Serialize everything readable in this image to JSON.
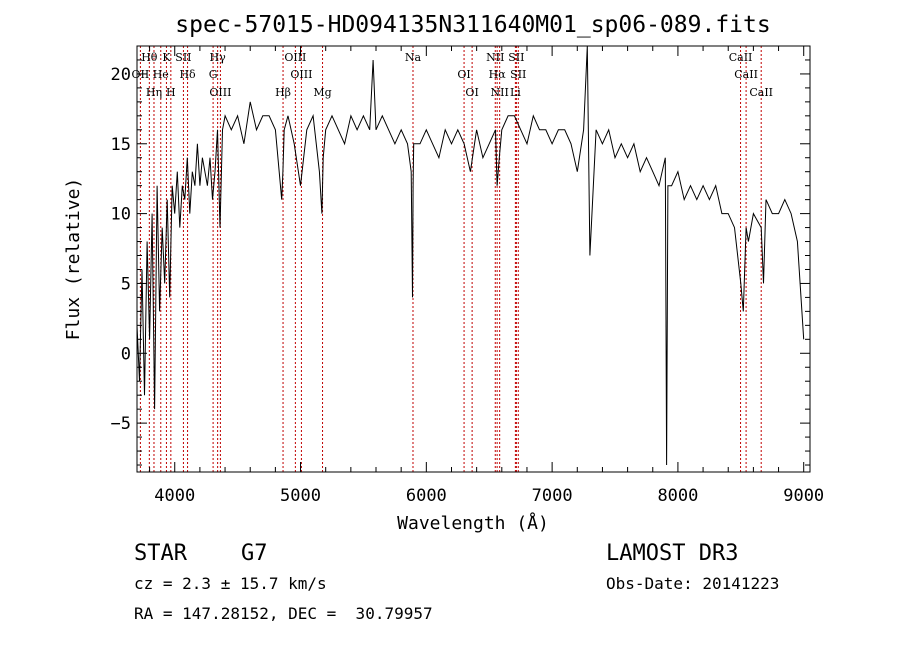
{
  "chart_data": {
    "type": "line",
    "title": "spec-57015-HD094135N311640M01_sp06-089.fits",
    "xlabel": "Wavelength (Å)",
    "ylabel": "Flux (relative)",
    "xlim": [
      3700,
      9050
    ],
    "ylim": [
      -8.5,
      22
    ],
    "xticks": [
      4000,
      5000,
      6000,
      7000,
      8000,
      9000
    ],
    "xtick_labels": [
      "4000",
      "5000",
      "6000",
      "7000",
      "8000",
      "9000"
    ],
    "yticks": [
      -5,
      0,
      5,
      10,
      15,
      20
    ],
    "ytick_labels": [
      "−5",
      "0",
      "5",
      "10",
      "15",
      "20"
    ],
    "series": [
      {
        "name": "flux",
        "x": [
          3700,
          3720,
          3740,
          3760,
          3780,
          3800,
          3820,
          3840,
          3860,
          3880,
          3900,
          3920,
          3940,
          3960,
          3980,
          4000,
          4020,
          4040,
          4060,
          4080,
          4100,
          4120,
          4140,
          4160,
          4180,
          4200,
          4220,
          4240,
          4260,
          4280,
          4300,
          4320,
          4340,
          4360,
          4380,
          4400,
          4450,
          4500,
          4550,
          4600,
          4650,
          4700,
          4750,
          4800,
          4850,
          4860,
          4870,
          4900,
          4950,
          5000,
          5050,
          5100,
          5150,
          5170,
          5180,
          5200,
          5250,
          5300,
          5350,
          5400,
          5450,
          5500,
          5550,
          5577,
          5600,
          5650,
          5700,
          5750,
          5800,
          5850,
          5880,
          5890,
          5895,
          5900,
          5950,
          6000,
          6050,
          6100,
          6150,
          6200,
          6250,
          6300,
          6350,
          6400,
          6450,
          6500,
          6550,
          6563,
          6580,
          6600,
          6650,
          6700,
          6750,
          6800,
          6850,
          6900,
          6950,
          7000,
          7050,
          7100,
          7150,
          7200,
          7250,
          7280,
          7300,
          7350,
          7400,
          7450,
          7500,
          7550,
          7600,
          7650,
          7700,
          7750,
          7800,
          7850,
          7900,
          7910,
          7920,
          7950,
          8000,
          8050,
          8100,
          8150,
          8200,
          8250,
          8300,
          8350,
          8400,
          8450,
          8500,
          8520,
          8542,
          8560,
          8600,
          8662,
          8680,
          8700,
          8750,
          8800,
          8850,
          8900,
          8950,
          9000
        ],
        "values": [
          2,
          -2,
          6,
          -3,
          8,
          1,
          10,
          -4,
          12,
          3,
          9,
          5,
          11,
          4,
          12,
          10,
          13,
          9,
          12,
          11,
          14,
          10,
          13,
          12,
          15,
          12,
          14,
          13,
          12,
          14,
          11,
          13,
          16,
          9,
          16,
          17,
          16,
          17,
          15,
          18,
          16,
          17,
          17,
          16,
          11,
          13,
          16,
          17,
          15,
          12,
          16,
          17,
          13,
          10,
          14,
          16,
          17,
          16,
          15,
          17,
          16,
          17,
          16,
          21,
          16,
          17,
          16,
          15,
          16,
          15,
          13,
          4,
          12,
          15,
          15,
          16,
          15,
          14,
          16,
          15,
          16,
          15,
          13,
          16,
          14,
          15,
          16,
          12,
          14,
          16,
          17,
          17,
          16,
          15,
          17,
          16,
          16,
          15,
          16,
          16,
          15,
          13,
          16,
          22,
          7,
          16,
          15,
          16,
          14,
          15,
          14,
          15,
          13,
          14,
          13,
          12,
          14,
          -8,
          12,
          12,
          13,
          11,
          12,
          11,
          12,
          11,
          12,
          10,
          10,
          9,
          5,
          3,
          9,
          8,
          10,
          9,
          5,
          11,
          10,
          10,
          11,
          10,
          8,
          1
        ]
      }
    ],
    "lines": [
      {
        "name": "Hθ",
        "x": 3798
      },
      {
        "name": "OII",
        "x": 3727
      },
      {
        "name": "Hη",
        "x": 3835
      },
      {
        "name": "K",
        "x": 3934
      },
      {
        "name": "He",
        "x": 3889
      },
      {
        "name": "H",
        "x": 3969
      },
      {
        "name": "SII",
        "x": 4069
      },
      {
        "name": "Hδ",
        "x": 4102
      },
      {
        "name": "OIII",
        "x": 4363
      },
      {
        "name": "Hγ",
        "x": 4341
      },
      {
        "name": "G",
        "x": 4305
      },
      {
        "name": "Hβ",
        "x": 4861
      },
      {
        "name": "OIII",
        "x": 4959
      },
      {
        "name": "OIII",
        "x": 5007
      },
      {
        "name": "Mg",
        "x": 5175
      },
      {
        "name": "Na",
        "x": 5894
      },
      {
        "name": "OI",
        "x": 6300
      },
      {
        "name": "OI",
        "x": 6364
      },
      {
        "name": "NII",
        "x": 6548
      },
      {
        "name": "Hα",
        "x": 6563
      },
      {
        "name": "NII",
        "x": 6583
      },
      {
        "name": "SII",
        "x": 6716
      },
      {
        "name": "SII",
        "x": 6731
      },
      {
        "name": "Li",
        "x": 6708
      },
      {
        "name": "CaII",
        "x": 8498
      },
      {
        "name": "CaII",
        "x": 8542
      },
      {
        "name": "CaII",
        "x": 8662
      }
    ]
  },
  "info": {
    "object_class": "STAR",
    "subclass": "G7",
    "survey": "LAMOST DR3",
    "redshift": "cz = 2.3 ± 15.7 km/s",
    "obs_date": "Obs-Date: 20141223",
    "coords": "RA = 147.28152, DEC =  30.79957"
  },
  "colors": {
    "spectrum": "#000000",
    "line_marker": "#c00000",
    "axis": "#000000",
    "background": "#ffffff"
  }
}
